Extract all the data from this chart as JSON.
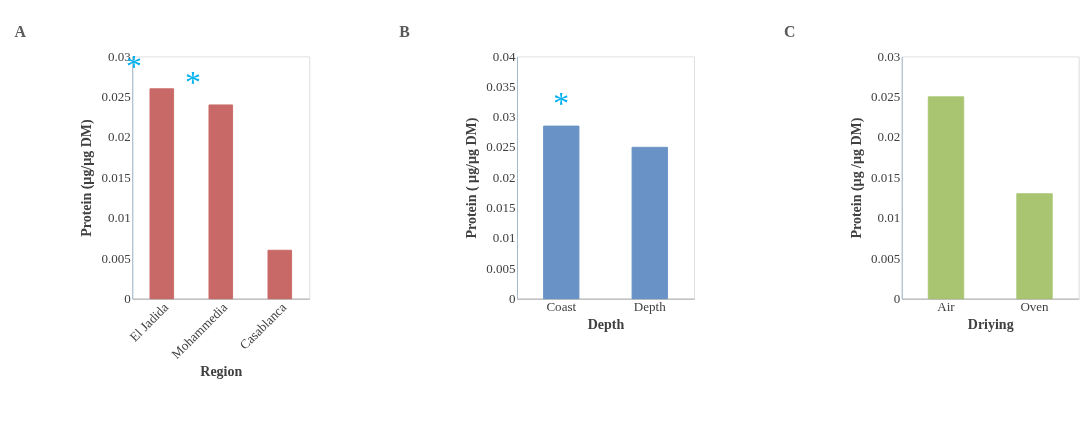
{
  "chart_data": [
    {
      "type": "bar",
      "title": "A",
      "xlabel": "Region",
      "ylabel": "Protein (µg/µg DM)",
      "categories": [
        "El Jadida",
        "Mohammedia",
        "Casablanca"
      ],
      "values": [
        0.026,
        0.024,
        0.006
      ],
      "color": "#c0504d",
      "ylim": [
        0,
        0.03
      ],
      "yticks": [
        0,
        0.005,
        0.01,
        0.015,
        0.02,
        0.025,
        0.03
      ],
      "grid": false,
      "annotations": [
        "*",
        "*"
      ]
    },
    {
      "type": "bar",
      "title": "B",
      "xlabel": "Depth",
      "ylabel": "Protein ( µg/µg DM)",
      "categories": [
        "Coast",
        "Depth"
      ],
      "values": [
        0.0285,
        0.025
      ],
      "color": "#4f81bd",
      "ylim": [
        0,
        0.04
      ],
      "yticks": [
        0,
        0.005,
        0.01,
        0.015,
        0.02,
        0.025,
        0.03,
        0.035,
        0.04
      ],
      "grid": false,
      "annotations": [
        "*"
      ]
    },
    {
      "type": "bar",
      "title": "C",
      "xlabel": "Driying",
      "ylabel": "Protein (µg /µg DM)",
      "categories": [
        "Air",
        "Oven"
      ],
      "values": [
        0.025,
        0.013
      ],
      "color": "#9bbb59",
      "ylim": [
        0,
        0.03
      ],
      "yticks": [
        0,
        0.005,
        0.01,
        0.015,
        0.02,
        0.025,
        0.03
      ],
      "grid": false
    }
  ]
}
